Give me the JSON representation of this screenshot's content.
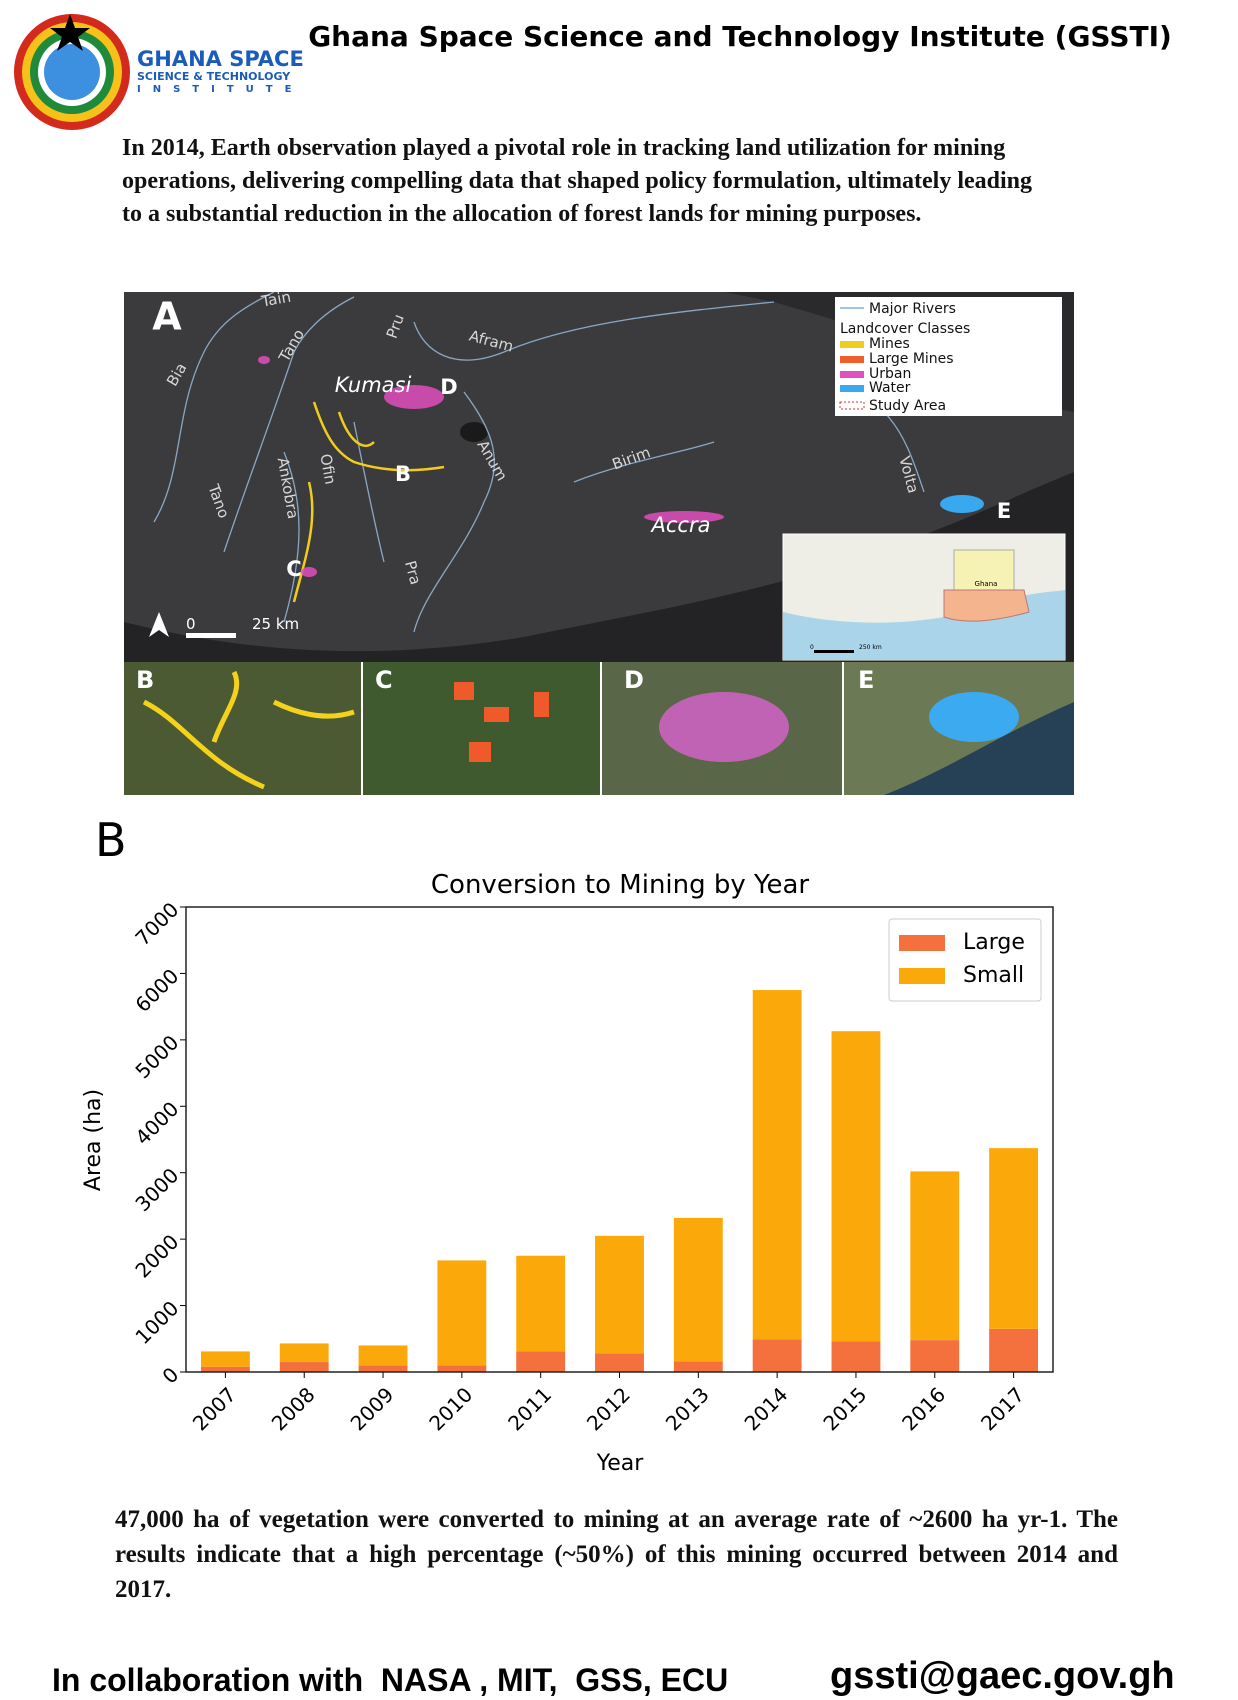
{
  "header": {
    "logo": {
      "line1": "GHANA SPACE",
      "line2": "SCIENCE & TECHNOLOGY",
      "line3": "INSTITUTE"
    },
    "title": "Ghana Space Science and Technology Institute (GSSTI)"
  },
  "intro": "In 2014, Earth observation played a pivotal role in tracking land utilization for mining operations, delivering compelling data that shaped policy formulation, ultimately leading to a substantial reduction in the allocation of forest lands for mining purposes.",
  "map": {
    "panel_label": "A",
    "rivers": [
      "Tain",
      "Bia",
      "Tano",
      "Pru",
      "Afram",
      "Anum",
      "Birim",
      "Ofin",
      "Ankobra",
      "Tano",
      "Volta",
      "Pra"
    ],
    "cities": [
      "Kumasi",
      "Accra"
    ],
    "sites": [
      "D",
      "B",
      "E",
      "C"
    ],
    "scale": [
      "0",
      "25 km"
    ],
    "legend": {
      "rivers": "Major Rivers",
      "heading": "Landcover Classes",
      "classes": [
        "Mines",
        "Large Mines",
        "Urban",
        "Water"
      ],
      "study_area": "Study Area"
    },
    "inset": {
      "country": "Ghana",
      "scale": [
        "0",
        "250 km"
      ]
    },
    "panels": [
      "B",
      "C",
      "D",
      "E"
    ]
  },
  "chart_data": {
    "type": "bar",
    "stacked": true,
    "panel_label": "B",
    "title": "Conversion to Mining by Year",
    "x_label": "Year",
    "y_label": "Area (ha)",
    "categories": [
      "2007",
      "2008",
      "2009",
      "2010",
      "2011",
      "2012",
      "2013",
      "2014",
      "2015",
      "2016",
      "2017"
    ],
    "series": [
      {
        "name": "Large",
        "color": "#f4703c",
        "values": [
          80,
          150,
          100,
          100,
          310,
          280,
          160,
          490,
          460,
          480,
          650
        ]
      },
      {
        "name": "Small",
        "color": "#fba90a",
        "values": [
          230,
          280,
          300,
          1580,
          1440,
          1770,
          2160,
          5260,
          4670,
          2540,
          2720
        ]
      }
    ],
    "ylim": [
      0,
      7000
    ],
    "yticks": [
      0,
      1000,
      2000,
      3000,
      4000,
      5000,
      6000,
      7000
    ],
    "grid": false,
    "legend": "upper right"
  },
  "summary": "47,000 ha of vegetation were converted to mining at an average rate of ~2600 ha yr-1. The results indicate that a high percentage (~50%) of this mining occurred between 2014 and 2017.",
  "footer": {
    "collaboration": "In collaboration with  NASA , MIT,  GSS, ECU",
    "email": "gssti@gaec.gov.gh"
  }
}
